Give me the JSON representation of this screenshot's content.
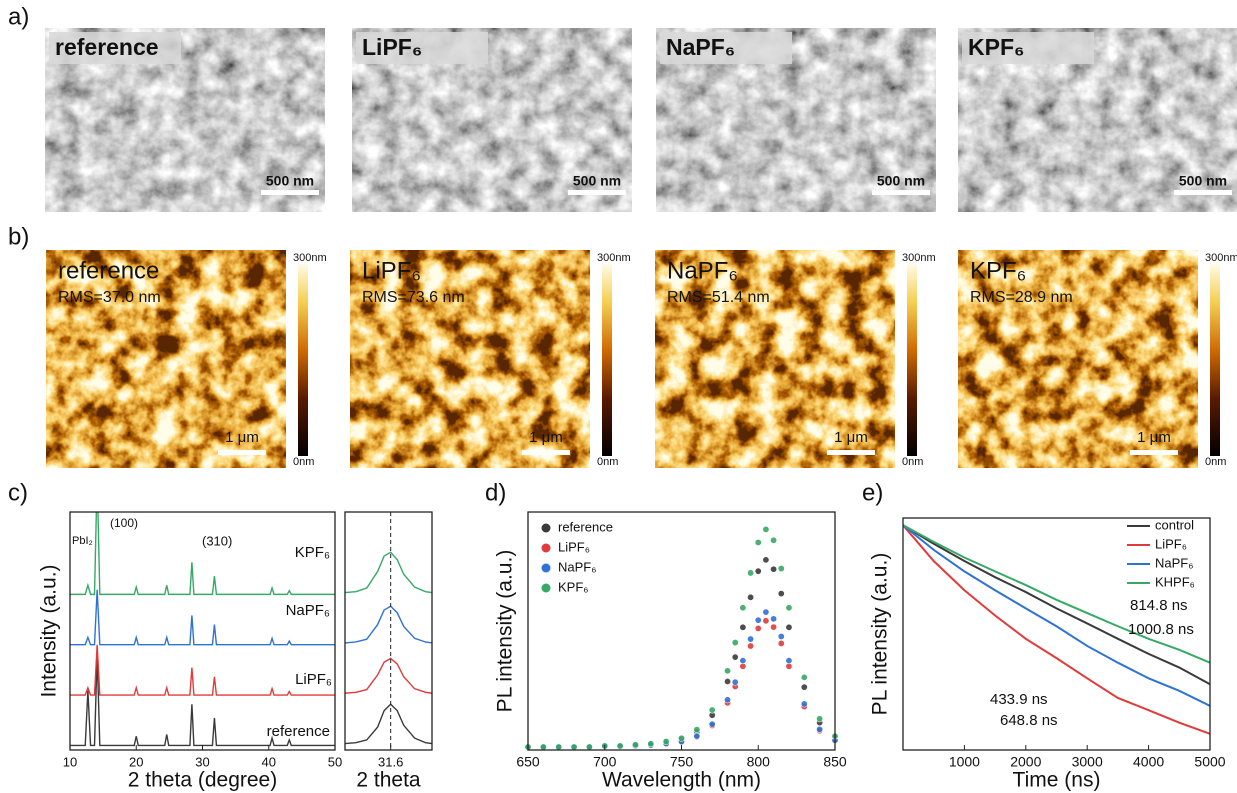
{
  "panel_labels": [
    "a)",
    "b)",
    "c)",
    "d)",
    "e)"
  ],
  "sem": {
    "images": [
      {
        "label": "reference",
        "scale_bar": "500 nm"
      },
      {
        "label": "LiPF₆",
        "scale_bar": "500 nm"
      },
      {
        "label": "NaPF₆",
        "scale_bar": "500 nm"
      },
      {
        "label": "KPF₆",
        "scale_bar": "500 nm"
      }
    ]
  },
  "afm": {
    "images": [
      {
        "label": "reference",
        "rms": "RMS=37.0 nm",
        "scale_bar": "1 μm",
        "colorbar_max": "300nm",
        "colorbar_min": "0nm"
      },
      {
        "label": "LiPF₆",
        "rms": "RMS=73.6 nm",
        "scale_bar": "1 μm",
        "colorbar_max": "300nm",
        "colorbar_min": "0nm"
      },
      {
        "label": "NaPF₆",
        "rms": "RMS=51.4 nm",
        "scale_bar": "1 μm",
        "colorbar_max": "300nm",
        "colorbar_min": "0nm"
      },
      {
        "label": "KPF₆",
        "rms": "RMS=28.9 nm",
        "scale_bar": "1 μm",
        "colorbar_max": "300nm",
        "colorbar_min": "0nm"
      }
    ]
  },
  "chart_data": [
    {
      "type": "xrd",
      "xlabel": "2 theta (degree)",
      "ylabel": "Intensity (a.u.)",
      "xlim": [
        10,
        50
      ],
      "xticks": [
        10,
        20,
        30,
        40,
        50
      ],
      "ylim": [
        -0.05,
        2.55
      ],
      "annotations": [
        "PbI₂",
        "(100)",
        "(310)"
      ],
      "x": [
        10,
        12.3,
        12.7,
        13.1,
        13.7,
        14.1,
        14.5,
        19.7,
        20.0,
        20.3,
        24.3,
        24.6,
        24.9,
        28.1,
        28.4,
        28.7,
        31.5,
        31.8,
        32.1,
        40.2,
        40.5,
        40.8,
        42.8,
        43.1,
        43.4,
        50
      ],
      "inset": {
        "xlabel": "2 theta",
        "xlim": [
          29.5,
          33.5
        ],
        "xticks": [
          31.6
        ],
        "x": [
          29.5,
          30,
          30.5,
          31,
          31.3,
          31.6,
          31.9,
          32.2,
          32.7,
          33.2,
          33.5
        ]
      },
      "series": [
        {
          "name": "reference",
          "color": "#3a3a3a",
          "values": [
            0,
            0,
            0.6,
            0,
            0,
            1.0,
            0,
            0,
            0.1,
            0,
            0,
            0.12,
            0,
            0,
            0.45,
            0,
            0,
            0.3,
            0,
            0,
            0.08,
            0,
            0,
            0.06,
            0,
            0
          ],
          "inset_values": [
            0.02,
            0.03,
            0.06,
            0.2,
            0.38,
            0.45,
            0.38,
            0.22,
            0.08,
            0.03,
            0.02
          ]
        },
        {
          "name": "LiPF₆",
          "color": "#e23a3a",
          "values": [
            0,
            0,
            0.08,
            0,
            0,
            0.55,
            0,
            0,
            0.08,
            0,
            0,
            0.08,
            0,
            0,
            0.3,
            0,
            0,
            0.2,
            0,
            0,
            0.07,
            0,
            0,
            0.04,
            0,
            0
          ],
          "inset_values": [
            0.02,
            0.03,
            0.06,
            0.22,
            0.36,
            0.4,
            0.34,
            0.2,
            0.07,
            0.03,
            0.02
          ]
        },
        {
          "name": "NaPF₆",
          "color": "#2f72d6",
          "values": [
            0,
            0,
            0.08,
            0,
            0,
            0.6,
            0,
            0,
            0.08,
            0,
            0,
            0.08,
            0,
            0,
            0.32,
            0,
            0,
            0.22,
            0,
            0,
            0.07,
            0,
            0,
            0.04,
            0,
            0
          ],
          "inset_values": [
            0.02,
            0.03,
            0.06,
            0.22,
            0.38,
            0.42,
            0.35,
            0.2,
            0.07,
            0.03,
            0.02
          ]
        },
        {
          "name": "KPF₆",
          "color": "#37a866",
          "values": [
            0,
            0,
            0.1,
            0,
            0,
            1.3,
            0,
            0,
            0.08,
            0,
            0,
            0.1,
            0,
            0,
            0.35,
            0,
            0,
            0.2,
            0,
            0,
            0.07,
            0,
            0,
            0.04,
            0,
            0
          ],
          "inset_values": [
            0.02,
            0.03,
            0.07,
            0.25,
            0.42,
            0.46,
            0.38,
            0.22,
            0.08,
            0.03,
            0.02
          ]
        }
      ]
    },
    {
      "type": "dots",
      "xlabel": "Wavelength (nm)",
      "ylabel": "PL intensity (a.u.)",
      "xlim": [
        650,
        850
      ],
      "xticks": [
        650,
        700,
        750,
        800,
        850
      ],
      "ylim": [
        0,
        1.08
      ],
      "x": [
        650,
        660,
        670,
        680,
        690,
        700,
        710,
        720,
        730,
        740,
        750,
        760,
        770,
        780,
        785,
        790,
        795,
        800,
        805,
        810,
        815,
        820,
        830,
        840,
        850
      ],
      "series": [
        {
          "name": "reference",
          "color": "#3a3a3a",
          "values": [
            0,
            0,
            0,
            0,
            0,
            0.004,
            0.004,
            0.009,
            0.013,
            0.022,
            0.034,
            0.069,
            0.146,
            0.301,
            0.413,
            0.55,
            0.688,
            0.808,
            0.86,
            0.817,
            0.705,
            0.55,
            0.275,
            0.112,
            0.043
          ]
        },
        {
          "name": "LiPF₆",
          "color": "#e23a3a",
          "values": [
            0,
            0,
            0,
            0,
            0,
            0.003,
            0.003,
            0.006,
            0.009,
            0.015,
            0.023,
            0.046,
            0.099,
            0.203,
            0.278,
            0.371,
            0.464,
            0.545,
            0.58,
            0.551,
            0.476,
            0.371,
            0.186,
            0.075,
            0.029
          ]
        },
        {
          "name": "NaPF₆",
          "color": "#2f72d6",
          "values": [
            0,
            0,
            0,
            0,
            0,
            0.003,
            0.003,
            0.006,
            0.009,
            0.016,
            0.025,
            0.05,
            0.105,
            0.217,
            0.298,
            0.397,
            0.496,
            0.583,
            0.62,
            0.589,
            0.508,
            0.397,
            0.198,
            0.081,
            0.031
          ]
        },
        {
          "name": "KPF₆",
          "color": "#37a866",
          "values": [
            0,
            0,
            0,
            0,
            0,
            0.005,
            0.005,
            0.01,
            0.015,
            0.025,
            0.04,
            0.08,
            0.17,
            0.35,
            0.48,
            0.64,
            0.8,
            0.94,
            1.0,
            0.95,
            0.82,
            0.64,
            0.32,
            0.13,
            0.05
          ]
        }
      ]
    },
    {
      "type": "decay",
      "xlabel": "Time (ns)",
      "ylabel": "PL intensity (a.u.)",
      "xlim": [
        0,
        5000
      ],
      "xticks": [
        1000,
        2000,
        3000,
        4000,
        5000
      ],
      "ylim": [
        0.05,
        1.1
      ],
      "ylog": true,
      "x": [
        0,
        500,
        1000,
        1500,
        2000,
        2500,
        3000,
        3500,
        4000,
        4500,
        5000
      ],
      "series": [
        {
          "name": "control",
          "color": "#3a3a3a",
          "lifetime": "814.8 ns",
          "values": [
            1,
            0.78,
            0.62,
            0.5,
            0.41,
            0.33,
            0.27,
            0.22,
            0.18,
            0.15,
            0.12
          ]
        },
        {
          "name": "LiPF₆",
          "color": "#e23a3a",
          "lifetime": "433.9 ns",
          "values": [
            1,
            0.62,
            0.42,
            0.3,
            0.22,
            0.17,
            0.13,
            0.1,
            0.085,
            0.072,
            0.062
          ]
        },
        {
          "name": "NaPF₆",
          "color": "#2f72d6",
          "lifetime": "648.8 ns",
          "values": [
            1,
            0.72,
            0.54,
            0.42,
            0.33,
            0.26,
            0.2,
            0.16,
            0.13,
            0.11,
            0.09
          ]
        },
        {
          "name": "KHPF₆",
          "color": "#37a866",
          "lifetime": "1000.8 ns",
          "values": [
            1,
            0.8,
            0.65,
            0.54,
            0.45,
            0.37,
            0.31,
            0.26,
            0.22,
            0.19,
            0.16
          ]
        }
      ]
    }
  ]
}
